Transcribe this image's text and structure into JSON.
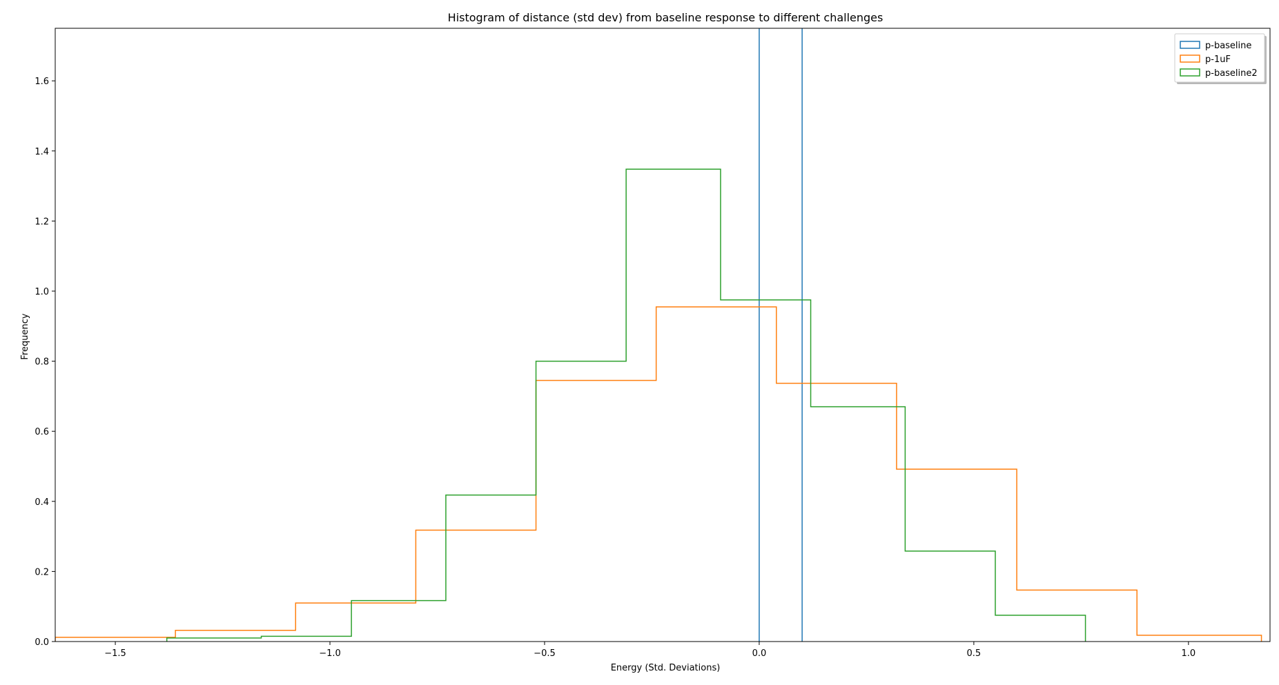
{
  "chart_data": {
    "type": "histogram",
    "title": "Histogram of distance (std dev) from baseline response to different challenges",
    "xlabel": "Energy (Std. Deviations)",
    "ylabel": "Frequency",
    "xlim": [
      -1.64,
      1.19
    ],
    "ylim": [
      0,
      1.75
    ],
    "xticks": [
      -1.5,
      -1.0,
      -0.5,
      0.0,
      0.5,
      1.0
    ],
    "xtick_labels": [
      "−1.5",
      "−1.0",
      "−0.5",
      "0.0",
      "0.5",
      "1.0"
    ],
    "yticks": [
      0.0,
      0.2,
      0.4,
      0.6,
      0.8,
      1.0,
      1.2,
      1.4,
      1.6
    ],
    "ytick_labels": [
      "0.0",
      "0.2",
      "0.4",
      "0.6",
      "0.8",
      "1.0",
      "1.2",
      "1.4",
      "1.6"
    ],
    "grid": false,
    "legend_position": "top-right",
    "series": [
      {
        "name": "p-baseline",
        "color": "#1f77b4",
        "kind": "vlines",
        "x": [
          0.0,
          0.1
        ]
      },
      {
        "name": "p-1uF",
        "color": "#ff7f0e",
        "kind": "step",
        "bin_edges": [
          -1.64,
          -1.36,
          -1.08,
          -0.8,
          -0.52,
          -0.24,
          0.04,
          0.32,
          0.6,
          0.88,
          1.17
        ],
        "values": [
          0.012,
          0.032,
          0.11,
          0.318,
          0.745,
          0.955,
          0.737,
          0.492,
          0.147,
          0.018
        ]
      },
      {
        "name": "p-baseline2",
        "color": "#2ca02c",
        "kind": "step",
        "bin_edges": [
          -1.38,
          -1.16,
          -0.95,
          -0.73,
          -0.52,
          -0.31,
          -0.09,
          0.12,
          0.34,
          0.55,
          0.76
        ],
        "values": [
          0.01,
          0.015,
          0.117,
          0.418,
          0.8,
          1.348,
          0.975,
          0.67,
          0.258,
          0.075
        ]
      }
    ]
  }
}
